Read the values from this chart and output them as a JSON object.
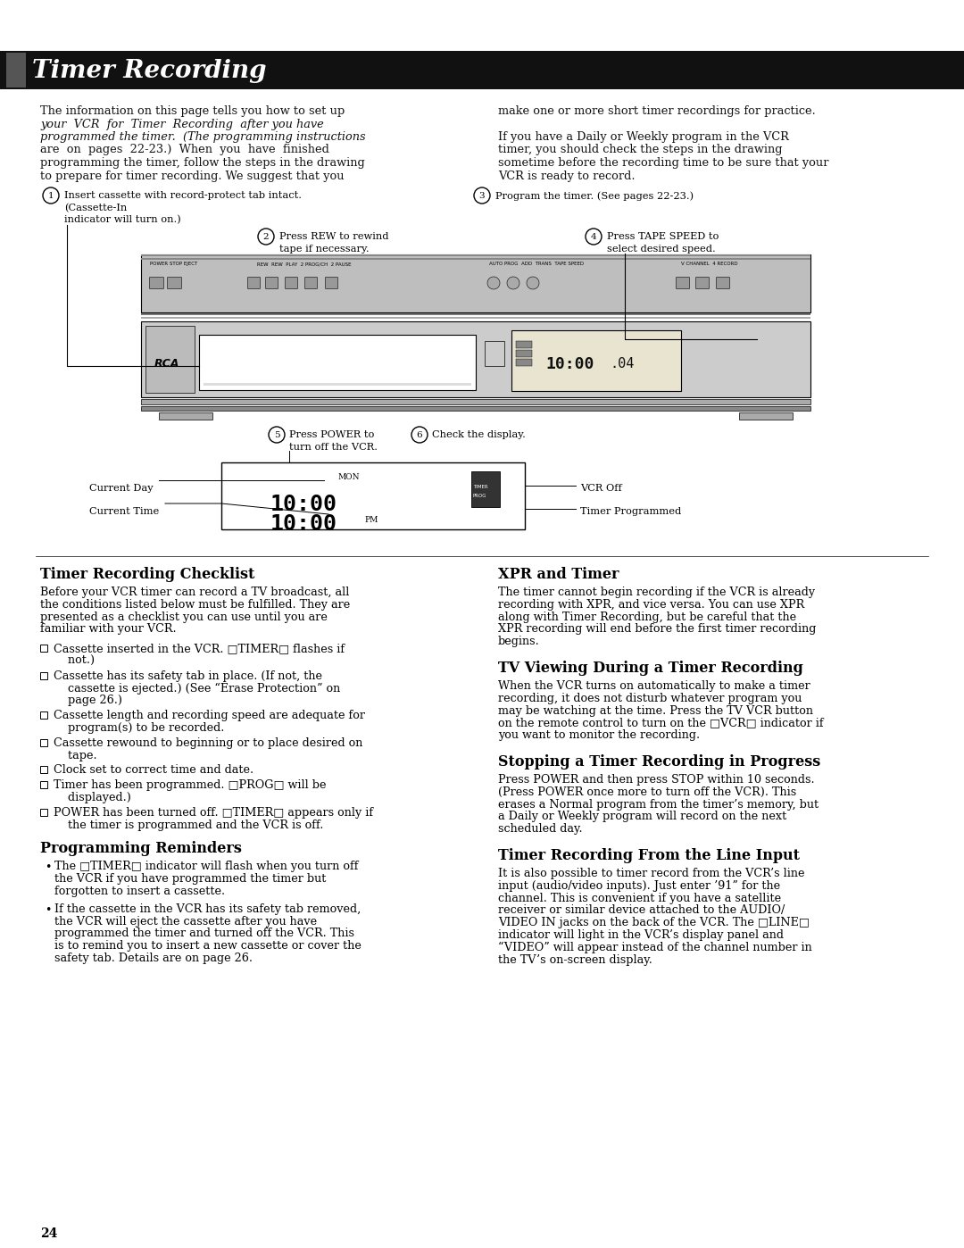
{
  "title": "Timer Recording",
  "bg_color": "#ffffff",
  "header_bg": "#111111",
  "header_text_color": "#ffffff",
  "body_text_color": "#111111",
  "page_number": "24",
  "left_intro": [
    "The information on this page tells you how to set up",
    "your  VCR  for  Timer  Recording  after you have",
    "programmed the timer.  (The programming instructions",
    "are  on  pages  22-23.)  When  you  have  finished",
    "programming the timer, follow the steps in the drawing",
    "to prepare for timer recording. We suggest that you"
  ],
  "left_intro_italic": [
    false,
    true,
    true,
    false,
    false,
    false
  ],
  "right_intro": [
    "make one or more short timer recordings for practice.",
    "",
    "If you have a Daily or Weekly program in the VCR",
    "timer, you should check the steps in the drawing",
    "sometime before the recording time to be sure that your",
    "VCR is ready to record."
  ],
  "section1_title": "Timer Recording Checklist",
  "section1_intro": [
    "Before your VCR timer can record a TV broadcast, all",
    "the conditions listed below must be fulfilled. They are",
    "presented as a checklist you can use until you are",
    "familiar with your VCR."
  ],
  "checklist": [
    [
      "Cassette inserted in the VCR. □TIMER□ flashes if",
      "    not.)"
    ],
    [
      "Cassette has its safety tab in place. (If not, the",
      "    cassette is ejected.) (See “Erase Protection” on",
      "    page 26.)"
    ],
    [
      "Cassette length and recording speed are adequate for",
      "    program(s) to be recorded."
    ],
    [
      "Cassette rewound to beginning or to place desired on",
      "    tape."
    ],
    [
      "Clock set to correct time and date."
    ],
    [
      "Timer has been programmed. □PROG□ will be",
      "    displayed.)"
    ],
    [
      "POWER has been turned off. □TIMER□ appears only if",
      "    the timer is programmed and the VCR is off."
    ]
  ],
  "section2_title": "Programming Reminders",
  "bullet1": [
    "The □TIMER□ indicator will flash when you turn off",
    "the VCR if you have programmed the timer but",
    "forgotten to insert a cassette."
  ],
  "bullet2": [
    "If the cassette in the VCR has its safety tab removed,",
    "the VCR will eject the cassette after you have",
    "programmed the timer and turned off the VCR. This",
    "is to remind you to insert a new cassette or cover the",
    "safety tab. Details are on page 26."
  ],
  "section3_title": "XPR and Timer",
  "section3_lines": [
    "The timer cannot begin recording if the VCR is already",
    "recording with XPR, and vice versa. You can use XPR",
    "along with Timer Recording, but be careful that the",
    "XPR recording will end before the first timer recording",
    "begins."
  ],
  "section4_title": "TV Viewing During a Timer Recording",
  "section4_lines": [
    "When the VCR turns on automatically to make a timer",
    "recording, it does not disturb whatever program you",
    "may be watching at the time. Press the TV VCR button",
    "on the remote control to turn on the □VCR□ indicator if",
    "you want to monitor the recording."
  ],
  "section5_title": "Stopping a Timer Recording in Progress",
  "section5_lines": [
    "Press POWER and then press STOP within 10 seconds.",
    "(Press POWER once more to turn off the VCR). This",
    "erases a Normal program from the timer’s memory, but",
    "a Daily or Weekly program will record on the next",
    "scheduled day."
  ],
  "section6_title": "Timer Recording From the Line Input",
  "section6_lines": [
    "It is also possible to timer record from the VCR’s line",
    "input (audio/video inputs). Just enter ’91” for the",
    "channel. This is convenient if you have a satellite",
    "receiver or similar device attached to the AUDIO/",
    "VIDEO IN jacks on the back of the VCR. The □LINE□",
    "indicator will light in the VCR’s display panel and",
    "“VIDEO” will appear instead of the channel number in",
    "the TV’s on-screen display."
  ]
}
